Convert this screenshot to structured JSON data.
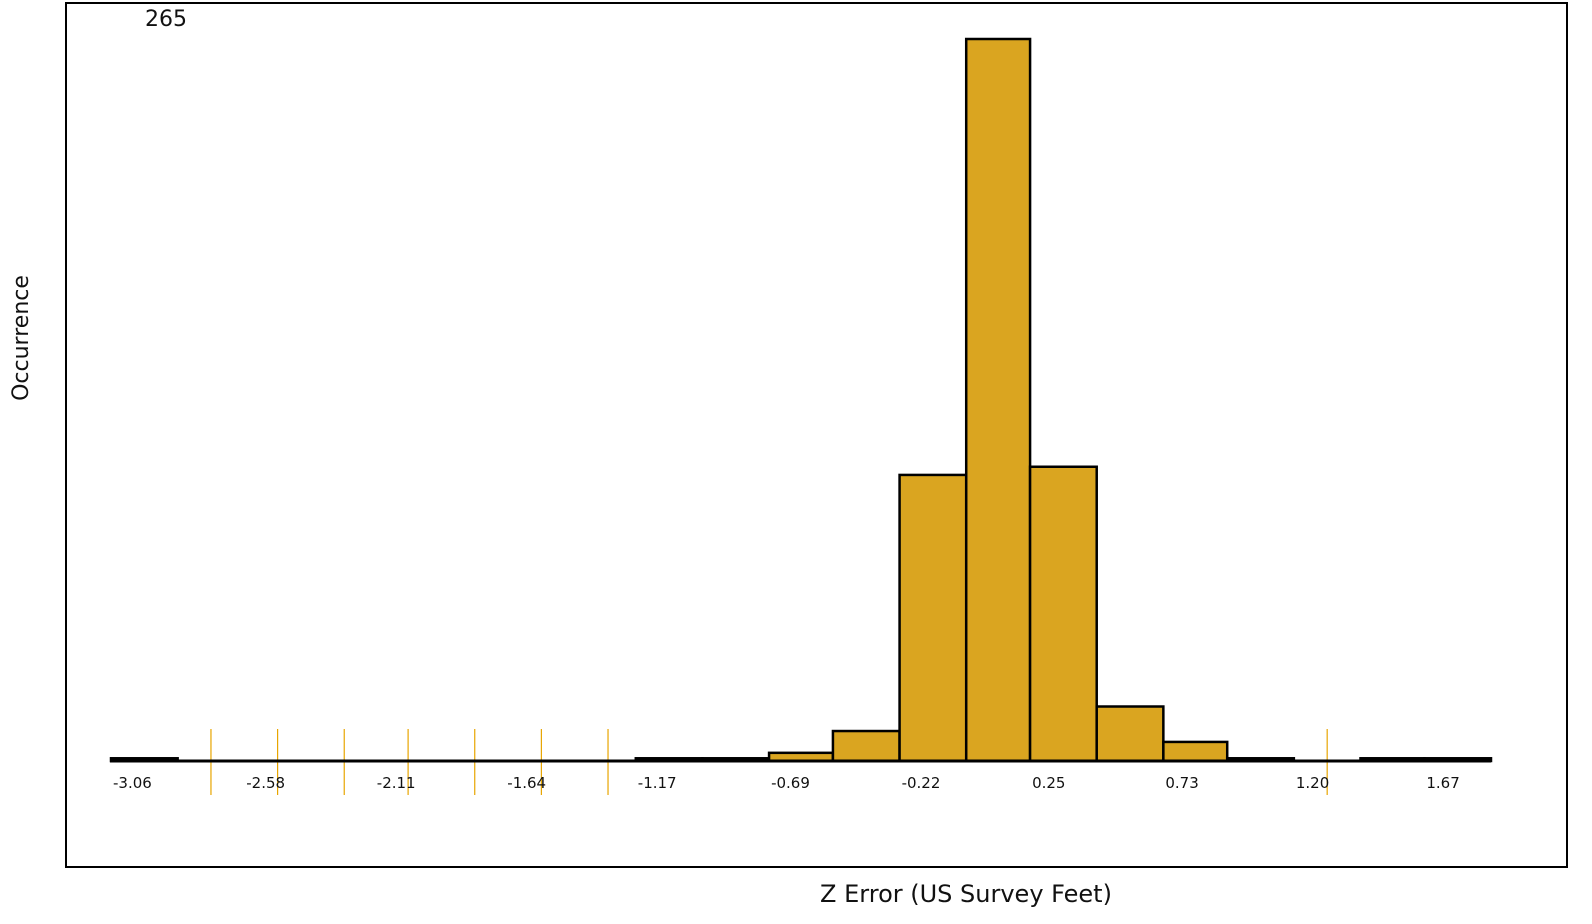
{
  "chart_data": {
    "type": "bar",
    "title": "",
    "xlabel": "Z Error (US Survey Feet)",
    "ylabel": "Occurrence",
    "ymax_label": "265",
    "ylim": [
      0,
      265
    ],
    "x_tick_labels": [
      "-3.06",
      "-2.58",
      "-2.11",
      "-1.64",
      "-1.17",
      "-0.69",
      "-0.22",
      "0.25",
      "0.73",
      "1.20",
      "1.67"
    ],
    "bin_edges": [
      -3.06,
      -2.82,
      -2.58,
      -2.35,
      -2.11,
      -1.87,
      -1.64,
      -1.4,
      -1.17,
      -0.93,
      -0.69,
      -0.46,
      -0.22,
      0.02,
      0.25,
      0.49,
      0.73,
      0.96,
      1.2,
      1.44,
      1.67,
      1.91
    ],
    "values": [
      1,
      0,
      0,
      0,
      0,
      0,
      0,
      0,
      1,
      1,
      3,
      11,
      105,
      265,
      108,
      20,
      7,
      1,
      0,
      1,
      1
    ],
    "bar_color": "#DAA520",
    "marker_color": "#E8A500",
    "marker_positions": [
      -2.7,
      -2.46,
      -2.22,
      -1.99,
      -1.75,
      -1.51,
      -1.27,
      1.32
    ],
    "grid": false
  }
}
